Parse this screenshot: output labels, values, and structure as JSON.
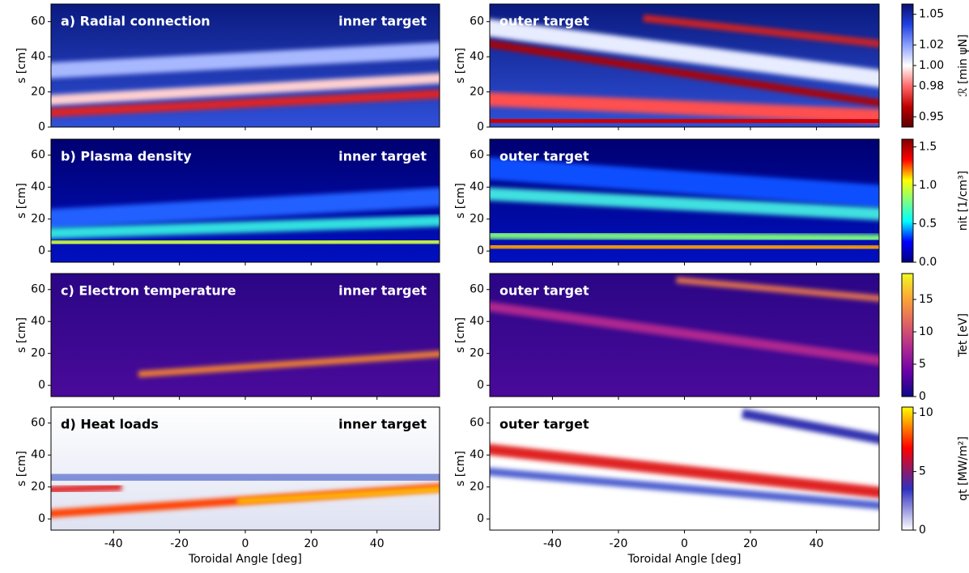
{
  "chart_data": [
    {
      "type": "heatmap",
      "title": "a) Radial connection",
      "target": "inner target",
      "text_color": "#ffffff",
      "ylabel": "s [cm]",
      "xlim": [
        -59,
        59
      ],
      "ylim": [
        0,
        70
      ],
      "xticks": [
        -40,
        -20,
        0,
        20,
        40
      ],
      "yticks": [
        0,
        20,
        40,
        60
      ]
    },
    {
      "type": "heatmap",
      "target": "outer target",
      "text_color": "#ffffff",
      "ylabel": "s [cm]",
      "xlim": [
        -59,
        59
      ],
      "ylim": [
        0,
        70
      ],
      "xticks": [
        -40,
        -20,
        0,
        20,
        40
      ],
      "yticks": [
        0,
        20,
        40,
        60
      ],
      "colorbar": {
        "label": "ℛ [min ψN]",
        "lim": [
          0.94,
          1.06
        ],
        "ticks": [
          0.95,
          0.98,
          {
            "value": 1,
            "label": "1.00"
          },
          1.02,
          1.05
        ],
        "colormap": [
          "#5a0000",
          "#c00000",
          "#ff6a6a",
          "#ffffff",
          "#8aa0ff",
          "#2040e0",
          "#0a1070"
        ]
      }
    },
    {
      "type": "heatmap",
      "title": "b) Plasma density",
      "target": "inner target",
      "text_color": "#ffffff",
      "ylabel": "s [cm]",
      "xlim": [
        -59,
        59
      ],
      "ylim": [
        -7,
        70
      ],
      "xticks": [
        -40,
        -20,
        0,
        20,
        40
      ],
      "yticks": [
        0,
        20,
        40,
        60
      ]
    },
    {
      "type": "heatmap",
      "target": "outer target",
      "text_color": "#ffffff",
      "ylabel": "s [cm]",
      "xlim": [
        -59,
        59
      ],
      "ylim": [
        -7,
        70
      ],
      "xticks": [
        -40,
        -20,
        0,
        20,
        40
      ],
      "yticks": [
        0,
        20,
        40,
        60
      ],
      "colorbar": {
        "label": "nit [1/cm³]",
        "lim": [
          0,
          1.6
        ],
        "ticks": [
          {
            "value": 0,
            "label": "0.0"
          },
          0.5,
          {
            "value": 1,
            "label": "1.0"
          },
          1.5
        ],
        "colormap": [
          "#000080",
          "#0000ff",
          "#00ffff",
          "#80ff80",
          "#ffff00",
          "#ff0000",
          "#800000"
        ]
      }
    },
    {
      "type": "heatmap",
      "title": "c) Electron temperature",
      "target": "inner target",
      "text_color": "#ffffff",
      "ylabel": "s [cm]",
      "xlim": [
        -59,
        59
      ],
      "ylim": [
        -7,
        70
      ],
      "xticks": [
        -40,
        -20,
        0,
        20,
        40
      ],
      "yticks": [
        0,
        20,
        40,
        60
      ]
    },
    {
      "type": "heatmap",
      "target": "outer target",
      "text_color": "#ffffff",
      "ylabel": "s [cm]",
      "xlim": [
        -59,
        59
      ],
      "ylim": [
        -7,
        70
      ],
      "xticks": [
        -40,
        -20,
        0,
        20,
        40
      ],
      "yticks": [
        0,
        20,
        40,
        60
      ],
      "colorbar": {
        "label": "Tet [eV]",
        "lim": [
          0,
          19
        ],
        "ticks": [
          0,
          5,
          10,
          15
        ],
        "colormap": [
          "#0d0887",
          "#6a00a8",
          "#b12a90",
          "#e16462",
          "#fca636",
          "#f0f921"
        ]
      }
    },
    {
      "type": "heatmap",
      "title": "d) Heat loads",
      "target": "inner target",
      "text_color": "#000000",
      "ylabel": "s [cm]",
      "xlabel": "Toroidal Angle [deg]",
      "xlim": [
        -59,
        59
      ],
      "ylim": [
        -7,
        70
      ],
      "xticks": [
        -40,
        -20,
        0,
        20,
        40
      ],
      "yticks": [
        0,
        20,
        40,
        60
      ]
    },
    {
      "type": "heatmap",
      "target": "outer target",
      "text_color": "#000000",
      "ylabel": "s [cm]",
      "xlabel": "Toroidal Angle [deg]",
      "xlim": [
        -59,
        59
      ],
      "ylim": [
        -7,
        70
      ],
      "xticks": [
        -40,
        -20,
        0,
        20,
        40
      ],
      "yticks": [
        0,
        20,
        40,
        60
      ],
      "colorbar": {
        "label": "qt [MW/m²]",
        "lim": [
          0,
          10.5
        ],
        "ticks": [
          0,
          5,
          10
        ],
        "colormap": [
          "#ffffff",
          "#3030c0",
          "#ff0000",
          "#ffff00"
        ]
      }
    }
  ]
}
